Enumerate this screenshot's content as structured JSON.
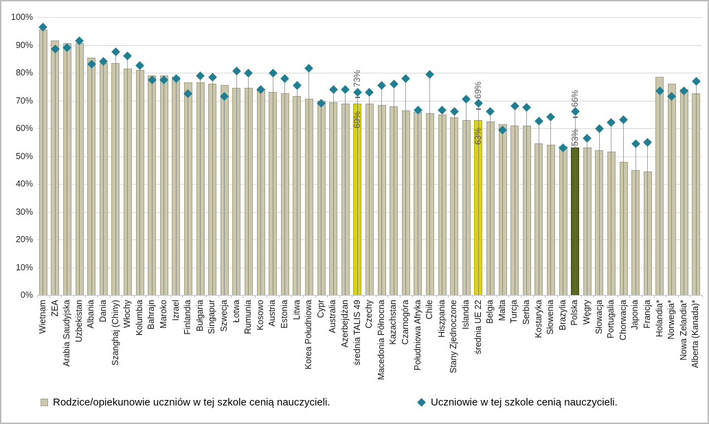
{
  "chart_data": {
    "type": "bar",
    "title": "",
    "xlabel": "",
    "ylabel": "",
    "ylim": [
      0,
      100
    ],
    "grid": true,
    "legend_position": "bottom",
    "yticks": [
      "0%",
      "10%",
      "20%",
      "30%",
      "40%",
      "50%",
      "60%",
      "70%",
      "80%",
      "90%",
      "100%"
    ],
    "categories": [
      "Wietnam",
      "ZEA",
      "Arabia Saudyjska",
      "Uzbekistan",
      "Albania",
      "Dania",
      "Szanghaj (Chiny)",
      "Włochy",
      "Kolumbia",
      "Bahrajn",
      "Maroko",
      "Izrael",
      "Finlandia",
      "Bułgaria",
      "Singapur",
      "Szwecja",
      "Łotwa",
      "Rumunia",
      "Kosowo",
      "Austria",
      "Estonia",
      "Litwa",
      "Korea Południowa",
      "Cypr",
      "Australia",
      "Azerbejdżan",
      "średnia TALIS 49",
      "Czechy",
      "Macedonia Północna",
      "Kazachstan",
      "Czarnogóra",
      "Południowa Afryka",
      "Chile",
      "Hiszpania",
      "Stany Zjednoczone",
      "Islandia",
      "średnia UE 22",
      "Belgia",
      "Malta",
      "Turcja",
      "Serbia",
      "Kostaryka",
      "Słowenia",
      "Brazylia",
      "Polska",
      "Węgry",
      "Słowacja",
      "Portugalia",
      "Chorwacja",
      "Japonia",
      "Francja",
      "Holandia*",
      "Norwegia*",
      "Nowa Zelandia*",
      "Alberta (Kanada)*"
    ],
    "series": [
      {
        "name": "Rodzice/opiekunowie uczniów w tej szkole cenią nauczycieli.",
        "type": "bar",
        "values": [
          95.5,
          91.5,
          90.5,
          90.5,
          85.5,
          83.5,
          83.5,
          81.5,
          81,
          79,
          79,
          78.5,
          76.5,
          76.5,
          76,
          75.5,
          74.5,
          74.5,
          74,
          73,
          72.5,
          71.5,
          70.5,
          70,
          69.5,
          69,
          69,
          69,
          68.5,
          68,
          66.5,
          66,
          65.5,
          65,
          64,
          63,
          63,
          62.5,
          61.5,
          61,
          61,
          54.5,
          54,
          53.5,
          53,
          53,
          52,
          51.5,
          48,
          45,
          44.5,
          78.5,
          76,
          74,
          72.5
        ]
      },
      {
        "name": "Uczniowie w tej szkole cenią nauczycieli.",
        "type": "scatter",
        "marker": "diamond",
        "values": [
          96.5,
          88.5,
          89,
          91.5,
          83,
          84,
          87.5,
          86,
          82.5,
          77.5,
          77.5,
          78,
          72.5,
          79,
          78.5,
          71.5,
          80.5,
          80,
          74,
          80,
          78,
          75.5,
          81.5,
          69,
          74,
          74,
          73,
          73,
          75.5,
          76,
          78,
          66.5,
          79.5,
          66.5,
          66,
          70.5,
          69,
          66,
          59.5,
          68,
          67.5,
          62.5,
          64,
          53,
          66,
          56.5,
          60,
          62,
          63,
          54.5,
          55,
          73.5,
          71.5,
          73.5,
          77
        ]
      }
    ],
    "highlight_yellow_indices": [
      26,
      36
    ],
    "highlight_green_indices": [
      44
    ],
    "annotations": [
      {
        "index": 26,
        "category": "średnia TALIS 49",
        "bar_label": "69%",
        "marker_label": "73%",
        "bar_label_inside": true
      },
      {
        "index": 36,
        "category": "średnia UE 22",
        "bar_label": "63%",
        "marker_label": "69%",
        "bar_label_inside": true
      },
      {
        "index": 44,
        "category": "Polska",
        "bar_label": "53%",
        "marker_label": "66%",
        "bar_label_inside": false
      }
    ],
    "colors": {
      "bar_fill": "#cac7ad",
      "bar_highlight_yellow": "#d8d315",
      "bar_highlight_green": "#5a661f",
      "marker": "#1f7e91",
      "stem": "#696969",
      "gridline": "#d9d9d9",
      "annotation_text": "#595959",
      "axis_text": "#262626"
    }
  }
}
